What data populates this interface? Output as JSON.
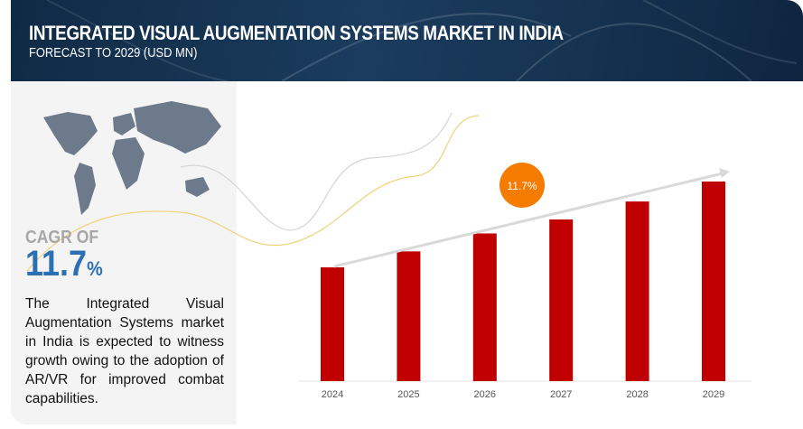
{
  "header": {
    "title": "INTEGRATED VISUAL AUGMENTATION SYSTEMS MARKET IN INDIA",
    "subtitle": "FORECAST TO 2029 (USD MN)"
  },
  "sidebar": {
    "cagr_label": "CAGR OF",
    "cagr_value": "11.7",
    "cagr_unit": "%",
    "description": "The Integrated Visual Augmentation Systems market in India is expected to witness growth owing to the adoption of AR/VR for improved combat capabilities.",
    "map_icon": "world-map"
  },
  "colors": {
    "bar": "#c00000",
    "badge": "#f57c00",
    "header": "#17324f",
    "cagr": "#2c6fb3",
    "arrow": "#d9d9d9"
  },
  "chart_data": {
    "type": "bar",
    "categories": [
      "2024",
      "2025",
      "2026",
      "2027",
      "2028",
      "2029"
    ],
    "values": [
      57,
      65,
      74,
      81,
      90,
      100
    ],
    "title": "",
    "xlabel": "",
    "ylabel": "",
    "annotation": "11.7%",
    "grid": false
  }
}
